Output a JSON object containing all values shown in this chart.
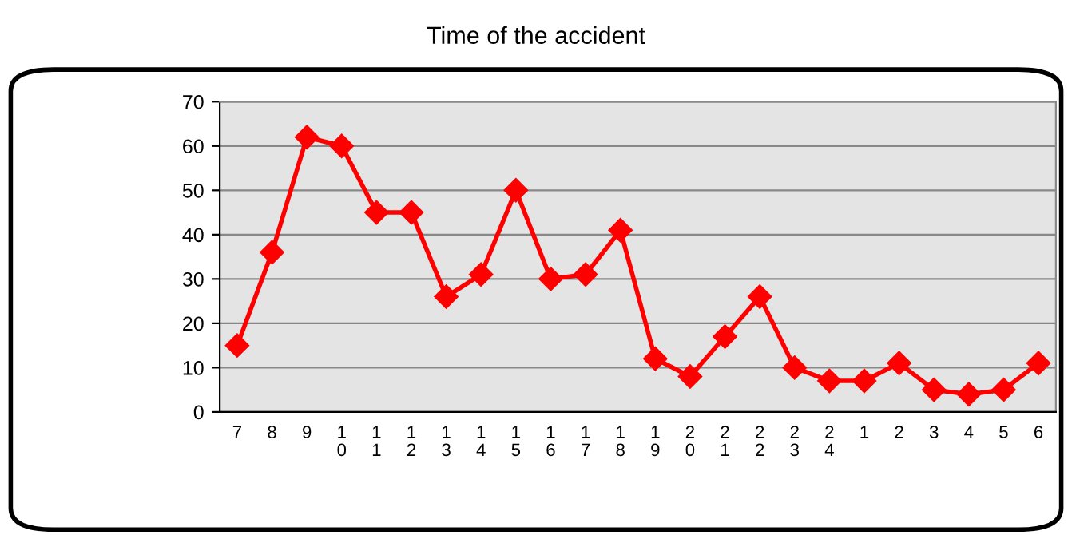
{
  "chart_data": {
    "type": "line",
    "title": "Time of the accident",
    "categories": [
      "7",
      "8",
      "9",
      "10",
      "11",
      "12",
      "13",
      "14",
      "15",
      "16",
      "17",
      "18",
      "19",
      "20",
      "21",
      "22",
      "23",
      "24",
      "1",
      "2",
      "3",
      "4",
      "5",
      "6"
    ],
    "series": [
      {
        "color": "#ff0000",
        "values": [
          15,
          36,
          62,
          60,
          45,
          45,
          26,
          31,
          50,
          30,
          31,
          41,
          12,
          8,
          17,
          26,
          10,
          7,
          7,
          11,
          5,
          4,
          5,
          11
        ]
      }
    ],
    "ylim": [
      0,
      70
    ],
    "yticks": [
      0,
      10,
      20,
      30,
      40,
      50,
      60,
      70
    ],
    "grid": "y",
    "marker": "diamond",
    "line_style": "solid"
  }
}
